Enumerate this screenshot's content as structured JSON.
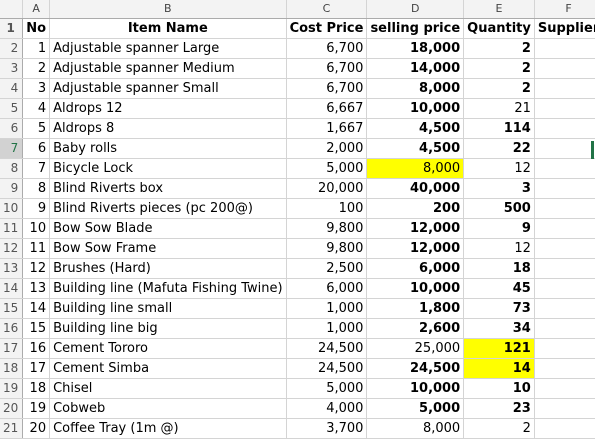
{
  "columns": [
    "A",
    "B",
    "C",
    "D",
    "E",
    "F"
  ],
  "header": {
    "row_number": "1",
    "no": "No",
    "item_name": "Item Name",
    "cost_price": "Cost Price",
    "selling_price": "selling price",
    "quantity": "Quantity",
    "supplier": "Supplier"
  },
  "rows": [
    {
      "row": "2",
      "no": "1",
      "name": "Adjustable spanner Large",
      "cost": "6,700",
      "sell": "18,000",
      "qty": "2"
    },
    {
      "row": "3",
      "no": "2",
      "name": "Adjustable spanner Medium",
      "cost": "6,700",
      "sell": "14,000",
      "qty": "2"
    },
    {
      "row": "4",
      "no": "3",
      "name": "Adjustable spanner Small",
      "cost": "6,700",
      "sell": "8,000",
      "qty": "2"
    },
    {
      "row": "5",
      "no": "4",
      "name": "Aldrops 12",
      "cost": "6,667",
      "sell": "10,000",
      "qty": "21"
    },
    {
      "row": "6",
      "no": "5",
      "name": "Aldrops 8",
      "cost": "1,667",
      "sell": "4,500",
      "qty": "114"
    },
    {
      "row": "7",
      "no": "6",
      "name": "Baby rolls",
      "cost": "2,000",
      "sell": "4,500",
      "qty": "22"
    },
    {
      "row": "8",
      "no": "7",
      "name": "Bicycle Lock",
      "cost": "5,000",
      "sell": "8,000",
      "qty": "12"
    },
    {
      "row": "9",
      "no": "8",
      "name": "Blind Riverts box",
      "cost": "20,000",
      "sell": "40,000",
      "qty": "3"
    },
    {
      "row": "10",
      "no": "9",
      "name": "Blind Riverts pieces (pc 200@)",
      "cost": "100",
      "sell": "200",
      "qty": "500"
    },
    {
      "row": "11",
      "no": "10",
      "name": "Bow Sow Blade",
      "cost": "9,800",
      "sell": "12,000",
      "qty": "9"
    },
    {
      "row": "12",
      "no": "11",
      "name": "Bow Sow Frame",
      "cost": "9,800",
      "sell": "12,000",
      "qty": "12"
    },
    {
      "row": "13",
      "no": "12",
      "name": "Brushes (Hard)",
      "cost": "2,500",
      "sell": "6,000",
      "qty": "18"
    },
    {
      "row": "14",
      "no": "13",
      "name": "Building line (Mafuta Fishing Twine)",
      "cost": "6,000",
      "sell": "10,000",
      "qty": "45"
    },
    {
      "row": "15",
      "no": "14",
      "name": "Building line small",
      "cost": "1,000",
      "sell": "1,800",
      "qty": "73"
    },
    {
      "row": "16",
      "no": "15",
      "name": "Building line big",
      "cost": "1,000",
      "sell": "2,600",
      "qty": "34"
    },
    {
      "row": "17",
      "no": "16",
      "name": "Cement Tororo",
      "cost": "24,500",
      "sell": "25,000",
      "qty": "121"
    },
    {
      "row": "18",
      "no": "17",
      "name": "Cement Simba",
      "cost": "24,500",
      "sell": "24,500",
      "qty": "14"
    },
    {
      "row": "19",
      "no": "18",
      "name": "Chisel",
      "cost": "5,000",
      "sell": "10,000",
      "qty": "10"
    },
    {
      "row": "20",
      "no": "19",
      "name": "Cobweb",
      "cost": "4,000",
      "sell": "5,000",
      "qty": "23"
    },
    {
      "row": "21",
      "no": "20",
      "name": "Coffee Tray (1m @)",
      "cost": "3,700",
      "sell": "8,000",
      "qty": "2"
    }
  ],
  "highlight_color": "#ffff00",
  "selection_color": "#217346"
}
